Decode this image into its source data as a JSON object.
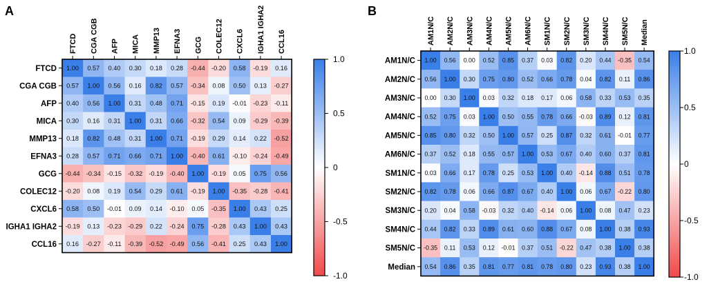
{
  "chart_data": [
    {
      "type": "heatmap",
      "panel_label": "A",
      "rows": [
        "FTCD",
        "CGA CGB",
        "AFP",
        "MICA",
        "MMP13",
        "EFNA3",
        "GCG",
        "COLEC12",
        "CXCL6",
        "IGHA1 IGHA2",
        "CCL16"
      ],
      "cols": [
        "FTCD",
        "CGA CGB",
        "AFP",
        "MICA",
        "MMP13",
        "EFNA3",
        "GCG",
        "COLEC12",
        "CXCL6",
        "IGHA1 IGHA2",
        "CCL16"
      ],
      "values": [
        [
          "1.00",
          "0.57",
          "0.40",
          "0.30",
          "0.18",
          "0.28",
          "-0.44",
          "-0.20",
          "0.58",
          "-0.19",
          "0.16"
        ],
        [
          "0.57",
          "1.00",
          "0.56",
          "0.16",
          "0.82",
          "0.57",
          "-0.34",
          "0.08",
          "0.50",
          "0.13",
          "-0.27"
        ],
        [
          "0.40",
          "0.56",
          "1.00",
          "0.31",
          "0.48",
          "0.71",
          "-0.15",
          "0.19",
          "-0.01",
          "-0.23",
          "-0.11"
        ],
        [
          "0.30",
          "0.16",
          "0.31",
          "1.00",
          "0.31",
          "0.66",
          "-0.32",
          "0.54",
          "0.09",
          "-0.29",
          "-0.39"
        ],
        [
          "0.18",
          "0.82",
          "0.48",
          "0.31",
          "1.00",
          "0.71",
          "-0.19",
          "0.29",
          "0.14",
          "0.22",
          "-0.52"
        ],
        [
          "0.28",
          "0.57",
          "0.71",
          "0.66",
          "0.71",
          "1.00",
          "-0.40",
          "0.61",
          "-0.10",
          "-0.24",
          "-0.49"
        ],
        [
          "-0.44",
          "-0.34",
          "-0.15",
          "-0.32",
          "-0.19",
          "-0.40",
          "1.00",
          "-0.19",
          "0.05",
          "0.75",
          "0.56"
        ],
        [
          "-0.20",
          "0.08",
          "0.19",
          "0.54",
          "0.29",
          "0.61",
          "-0.19",
          "1.00",
          "-0.35",
          "-0.28",
          "-0.41"
        ],
        [
          "0.58",
          "0.50",
          "-0.01",
          "0.09",
          "0.14",
          "-0.10",
          "0.05",
          "-0.35",
          "1.00",
          "0.43",
          "0.25"
        ],
        [
          "-0.19",
          "0.13",
          "-0.23",
          "-0.29",
          "0.22",
          "-0.24",
          "0.75",
          "-0.28",
          "0.43",
          "1.00",
          "0.43"
        ],
        [
          "0.16",
          "-0.27",
          "-0.11",
          "-0.39",
          "-0.52",
          "-0.49",
          "0.56",
          "-0.41",
          "0.25",
          "0.43",
          "1.00"
        ]
      ],
      "colorbar": {
        "ticks": [
          "1.0",
          "0.5",
          "0",
          "-0.5",
          "-1.0"
        ],
        "range": [
          -1,
          1
        ],
        "colors": {
          "low": "#f0494a",
          "mid": "#ffffff",
          "high": "#3a7ee8"
        }
      }
    },
    {
      "type": "heatmap",
      "panel_label": "B",
      "rows": [
        "AM1N/C",
        "AM2N/C",
        "AM3N/C",
        "AM4N/C",
        "AM5N/C",
        "AM6N/C",
        "SM1N/C",
        "SM2N/C",
        "SM3N/C",
        "SM4N/C",
        "SM5N/C",
        "Median"
      ],
      "cols": [
        "AM1N/C",
        "AM2N/C",
        "AM3N/C",
        "AM4N/C",
        "AM5N/C",
        "AM6N/C",
        "SM1N/C",
        "SM2N/C",
        "SM3N/C",
        "SM4N/C",
        "SM5N/C",
        "Median"
      ],
      "values": [
        [
          "1.00",
          "0.56",
          "0.00",
          "0.52",
          "0.85",
          "0.37",
          "0.03",
          "0.82",
          "0.20",
          "0.44",
          "-0.35",
          "0.54"
        ],
        [
          "0.56",
          "1.00",
          "0.30",
          "0.75",
          "0.80",
          "0.52",
          "0.66",
          "0.78",
          "0.04",
          "0.82",
          "0.11",
          "0.86"
        ],
        [
          "0.00",
          "0.30",
          "1.00",
          "0.03",
          "0.32",
          "0.18",
          "0.17",
          "0.06",
          "0.58",
          "0.33",
          "0.53",
          "0.35"
        ],
        [
          "0.52",
          "0.75",
          "0.03",
          "1.00",
          "0.50",
          "0.55",
          "0.78",
          "0.66",
          "-0.03",
          "0.89",
          "0.12",
          "0.81"
        ],
        [
          "0.85",
          "0.80",
          "0.32",
          "0.50",
          "1.00",
          "0.57",
          "0.25",
          "0.87",
          "0.32",
          "0.61",
          "-0.01",
          "0.77"
        ],
        [
          "0.37",
          "0.52",
          "0.18",
          "0.55",
          "0.57",
          "1.00",
          "0.53",
          "0.67",
          "0.40",
          "0.60",
          "0.37",
          "0.81"
        ],
        [
          "0.03",
          "0.66",
          "0.17",
          "0.78",
          "0.25",
          "0.53",
          "1.00",
          "0.40",
          "-0.14",
          "0.88",
          "0.51",
          "0.78"
        ],
        [
          "0.82",
          "0.78",
          "0.06",
          "0.66",
          "0.87",
          "0.67",
          "0.40",
          "1.00",
          "0.06",
          "0.67",
          "-0.22",
          "0.80"
        ],
        [
          "0.20",
          "0.04",
          "0.58",
          "-0.03",
          "0.32",
          "0.40",
          "-0.14",
          "0.06",
          "1.00",
          "0.08",
          "0.47",
          "0.23"
        ],
        [
          "0.44",
          "0.82",
          "0.33",
          "0.89",
          "0.61",
          "0.60",
          "0.88",
          "0.67",
          "0.08",
          "1.00",
          "0.38",
          "0.93"
        ],
        [
          "-0.35",
          "0.11",
          "0.53",
          "0.12",
          "-0.01",
          "0.37",
          "0.51",
          "-0.22",
          "0.47",
          "0.38",
          "1.00",
          "0.38"
        ],
        [
          "0.54",
          "0.86",
          "0.35",
          "0.81",
          "0.77",
          "0.81",
          "0.78",
          "0.80",
          "0.23",
          "0.93",
          "0.38",
          "1.00"
        ]
      ],
      "colorbar": {
        "ticks": [
          "1.0",
          "0.5",
          "0",
          "-0.5",
          "-1.0"
        ],
        "range": [
          -1,
          1
        ],
        "colors": {
          "low": "#f0494a",
          "mid": "#ffffff",
          "high": "#3a7ee8"
        }
      }
    }
  ]
}
